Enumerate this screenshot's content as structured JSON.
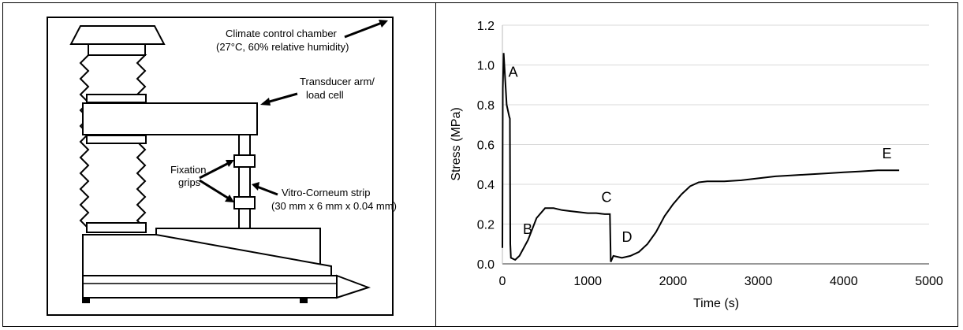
{
  "diagram": {
    "labels": {
      "chamber_line1": "Climate control chamber",
      "chamber_line2": "(27°C, 60% relative humidity)",
      "transducer_line1": "Transducer arm/",
      "transducer_line2": "load cell",
      "grips_line1": "Fixation",
      "grips_line2": "grips",
      "strip_line1": "Vitro-Corneum strip",
      "strip_line2": "(30 mm x 6 mm x 0.04  mm)"
    }
  },
  "chart_data": {
    "type": "line",
    "xlabel": "Time (s)",
    "ylabel": "Stress (MPa)",
    "xlim": [
      0,
      5000
    ],
    "ylim": [
      0,
      1.2
    ],
    "x_ticks": [
      "0",
      "1000",
      "2000",
      "3000",
      "4000",
      "5000"
    ],
    "y_ticks": [
      "0.0",
      "0.2",
      "0.4",
      "0.6",
      "0.8",
      "1.0",
      "1.2"
    ],
    "grid": "horizontal",
    "series": [
      {
        "points": [
          [
            0,
            0.08
          ],
          [
            5,
            0.88
          ],
          [
            15,
            1.06
          ],
          [
            30,
            0.95
          ],
          [
            50,
            0.8
          ],
          [
            70,
            0.76
          ],
          [
            80,
            0.74
          ],
          [
            88,
            0.73
          ],
          [
            92,
            0.1
          ],
          [
            100,
            0.03
          ],
          [
            150,
            0.02
          ],
          [
            200,
            0.04
          ],
          [
            300,
            0.12
          ],
          [
            400,
            0.23
          ],
          [
            500,
            0.28
          ],
          [
            600,
            0.28
          ],
          [
            700,
            0.27
          ],
          [
            800,
            0.265
          ],
          [
            900,
            0.26
          ],
          [
            1000,
            0.255
          ],
          [
            1100,
            0.255
          ],
          [
            1200,
            0.25
          ],
          [
            1260,
            0.25
          ],
          [
            1270,
            0.01
          ],
          [
            1300,
            0.04
          ],
          [
            1400,
            0.03
          ],
          [
            1500,
            0.04
          ],
          [
            1600,
            0.06
          ],
          [
            1700,
            0.1
          ],
          [
            1800,
            0.16
          ],
          [
            1900,
            0.24
          ],
          [
            2000,
            0.3
          ],
          [
            2100,
            0.35
          ],
          [
            2200,
            0.39
          ],
          [
            2300,
            0.41
          ],
          [
            2400,
            0.415
          ],
          [
            2600,
            0.415
          ],
          [
            2800,
            0.42
          ],
          [
            3000,
            0.43
          ],
          [
            3200,
            0.44
          ],
          [
            3400,
            0.445
          ],
          [
            3600,
            0.45
          ],
          [
            3800,
            0.455
          ],
          [
            4000,
            0.46
          ],
          [
            4200,
            0.465
          ],
          [
            4400,
            0.47
          ],
          [
            4600,
            0.47
          ],
          [
            4650,
            0.47
          ]
        ]
      }
    ],
    "annotations": [
      {
        "text": "A",
        "x": 70,
        "y": 0.94
      },
      {
        "text": "B",
        "x": 240,
        "y": 0.15
      },
      {
        "text": "C",
        "x": 1160,
        "y": 0.31
      },
      {
        "text": "D",
        "x": 1400,
        "y": 0.11
      },
      {
        "text": "E",
        "x": 4450,
        "y": 0.53
      }
    ]
  }
}
